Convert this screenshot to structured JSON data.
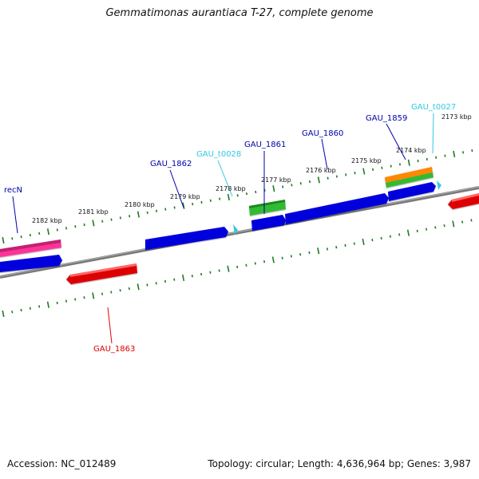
{
  "title": "Gemmatimonas aurantiaca T-27, complete genome",
  "footer": {
    "accession": "Accession: NC_012489",
    "summary": "Topology: circular; Length: 4,636,964 bp; Genes: 3,987"
  },
  "colors": {
    "backbone": "#808080",
    "tick": "#1f7a1f",
    "cds_forward": "#0000dd",
    "cds_reverse": "#dd0000",
    "rrna": "#ff3399",
    "trna": "#33c9e0",
    "misc_green": "#33bb33",
    "misc_orange": "#ff8800"
  },
  "scale_labels": [
    "2182 kbp",
    "2181 kbp",
    "2180 kbp",
    "2179 kbp",
    "2178 kbp",
    "2177 kbp",
    "2176 kbp",
    "2175 kbp",
    "2174 kbp",
    "2173 kbp"
  ],
  "gene_labels": [
    {
      "text": "recN",
      "color": "#0000aa"
    },
    {
      "text": "GAU_1862",
      "color": "#0000aa"
    },
    {
      "text": "GAU_t0028",
      "color": "#33c9e0"
    },
    {
      "text": "GAU_1861",
      "color": "#0000aa"
    },
    {
      "text": "GAU_1860",
      "color": "#0000aa"
    },
    {
      "text": "GAU_1859",
      "color": "#0000aa"
    },
    {
      "text": "GAU_t0027",
      "color": "#33c9e0"
    },
    {
      "text": "GAU_1863",
      "color": "#dd0000"
    }
  ]
}
